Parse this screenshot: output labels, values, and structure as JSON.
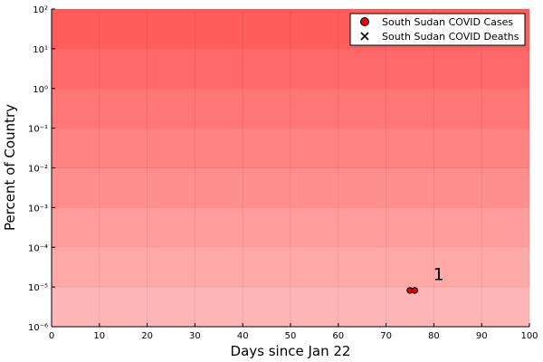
{
  "chart_data": {
    "type": "scatter",
    "xlabel": "Days since Jan 22",
    "ylabel": "Percent of Country",
    "xlim": [
      0,
      100
    ],
    "xticks": [
      0,
      10,
      20,
      30,
      40,
      50,
      60,
      70,
      80,
      90,
      100
    ],
    "ylim": [
      1e-06,
      100
    ],
    "yscale": "log",
    "yticks": [
      {
        "value": 1e-06,
        "label": "10⁻⁶"
      },
      {
        "value": 1e-05,
        "label": "10⁻⁵"
      },
      {
        "value": 0.0001,
        "label": "10⁻⁴"
      },
      {
        "value": 0.001,
        "label": "10⁻³"
      },
      {
        "value": 0.01,
        "label": "10⁻²"
      },
      {
        "value": 0.1,
        "label": "10⁻¹"
      },
      {
        "value": 1,
        "label": "10⁰"
      },
      {
        "value": 10,
        "label": "10¹"
      },
      {
        "value": 100,
        "label": "10²"
      }
    ],
    "grid": true,
    "background": "red gradient bands (darker toward top)",
    "legend_position": "top-right",
    "series": [
      {
        "name": "South Sudan COVID Cases",
        "marker": "circle",
        "color": "#e8000b",
        "x": [
          75,
          76
        ],
        "y": [
          8.2e-06,
          8.2e-06
        ]
      },
      {
        "name": "South Sudan COVID Deaths",
        "marker": "x",
        "color": "#000000",
        "x": [],
        "y": []
      }
    ],
    "annotations": [
      {
        "text": "1",
        "x": 81,
        "y": 1.5e-05
      }
    ]
  }
}
